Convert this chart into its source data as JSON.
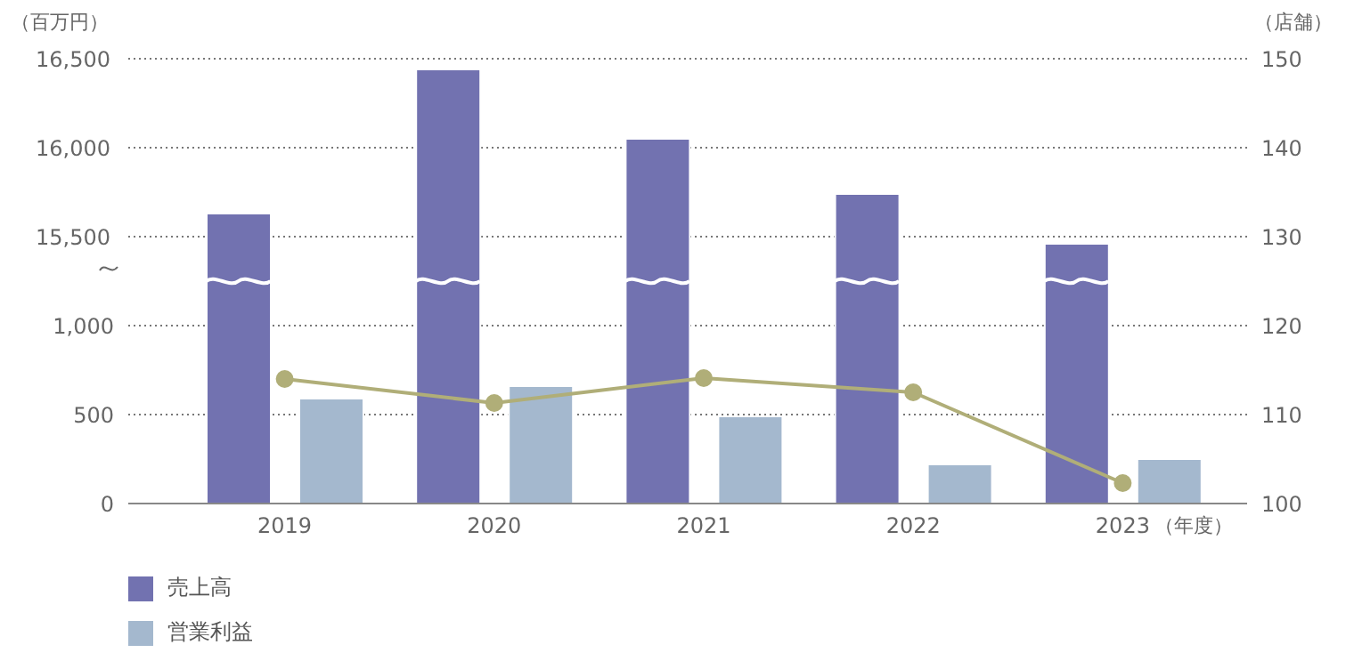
{
  "chart_data": {
    "type": "bar",
    "xlabel": "（年度）",
    "ylabel": "（百万円）",
    "y2label": "（店舗）",
    "categories": [
      "2019",
      "2020",
      "2021",
      "2022",
      "2023"
    ],
    "series": [
      {
        "name": "売上高",
        "color": "#7272b0",
        "axis": "y3",
        "values": [
          15630,
          16440,
          16050,
          15740,
          15460
        ]
      },
      {
        "name": "営業利益",
        "color": "#a4b8ce",
        "values": [
          590,
          660,
          490,
          220,
          250
        ]
      },
      {
        "type": "line",
        "axis": "y2",
        "color": "#b0ae78",
        "values": [
          114,
          111.3,
          114.1,
          112.5,
          102.3
        ]
      }
    ],
    "marker": "circle",
    "ylim": [
      0,
      2500
    ],
    "yticks": [
      0,
      500,
      {
        "value": 1000,
        "label": "1,000"
      }
    ],
    "y3lim": [
      14000,
      16500
    ],
    "y3ticks": [
      {
        "value": 15500,
        "label": "15,500"
      },
      {
        "value": 16000,
        "label": "16,000"
      },
      {
        "value": 16500,
        "label": "16,500"
      }
    ],
    "y2lim": [
      100,
      150
    ],
    "y2ticks": [
      100,
      110,
      120,
      130,
      140,
      150
    ],
    "grid": "y",
    "legend": "bottom left"
  }
}
